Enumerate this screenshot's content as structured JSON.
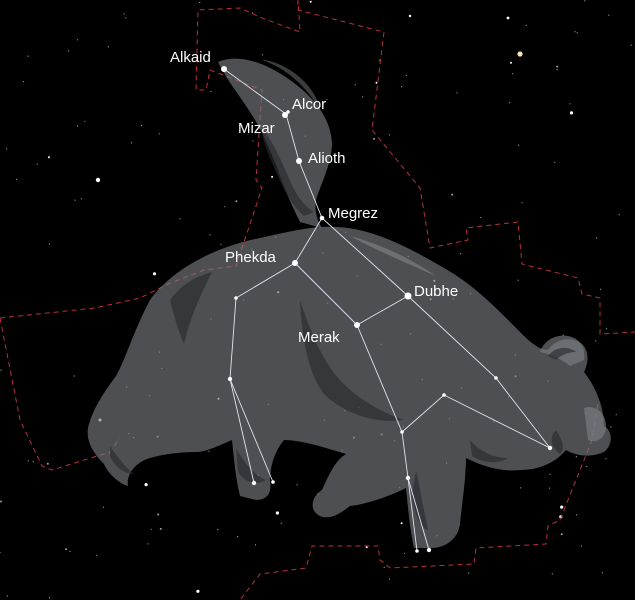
{
  "constellation": {
    "stars": [
      {
        "id": "alkaid",
        "label": "Alkaid"
      },
      {
        "id": "alcor",
        "label": "Alcor"
      },
      {
        "id": "mizar",
        "label": "Mizar"
      },
      {
        "id": "alioth",
        "label": "Alioth"
      },
      {
        "id": "megrez",
        "label": "Megrez"
      },
      {
        "id": "phekda",
        "label": "Phekda"
      },
      {
        "id": "dubhe",
        "label": "Dubhe"
      },
      {
        "id": "merak",
        "label": "Merak"
      }
    ]
  },
  "colors": {
    "sky": "#000000",
    "boundary": "#b8323a",
    "figure_lines": "#dfe6f2",
    "bear_silhouette": "#7d7f84",
    "labels": "#ffffff"
  }
}
